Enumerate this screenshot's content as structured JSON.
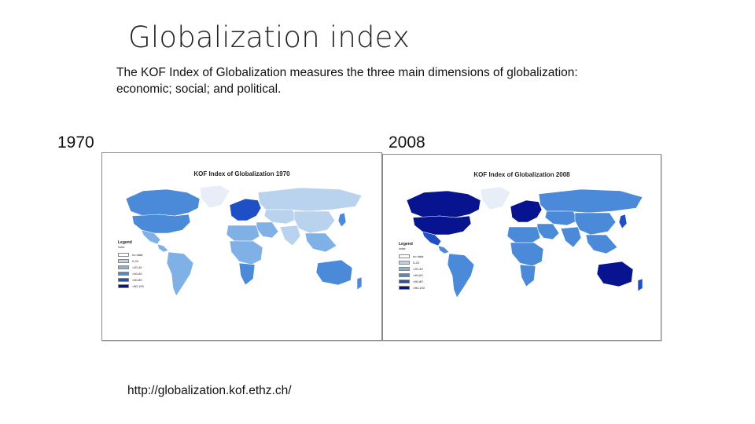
{
  "slide": {
    "title": "Globalization index",
    "subtitle": "The KOF Index of Globalization measures the three main dimensions of globalization: economic; social; and political.",
    "source_url": "http://globalization.kof.ethz.ch/"
  },
  "maps": [
    {
      "year_label": "1970",
      "map_title": "KOF Index of Globalization 1970",
      "legend_title": "Legend",
      "legend_subtitle": "Index",
      "legend": [
        {
          "label": "no data",
          "color": "#ffffff"
        },
        {
          "label": "0-20",
          "color": "#b9d3ef"
        },
        {
          "label": ">20-40",
          "color": "#7fb0e6"
        },
        {
          "label": ">40-60",
          "color": "#4a8ad9"
        },
        {
          "label": ">60-80",
          "color": "#1f4fc4"
        },
        {
          "label": ">80-100",
          "color": "#08148f"
        }
      ],
      "region_colors": {
        "canada": "#4a8ad9",
        "usa": "#4a8ad9",
        "greenland": "#e8eef7",
        "mexico": "#7fb0e6",
        "central_america": "#7fb0e6",
        "south_america": "#7fb0e6",
        "europe": "#1f4fc4",
        "russia": "#b9d3ef",
        "central_asia": "#b9d3ef",
        "middle_east": "#7fb0e6",
        "north_africa": "#7fb0e6",
        "sub_saharan_africa": "#7fb0e6",
        "southern_africa": "#4a8ad9",
        "south_asia": "#b9d3ef",
        "china": "#b9d3ef",
        "southeast_asia": "#7fb0e6",
        "japan": "#4a8ad9",
        "australia": "#4a8ad9",
        "new_zealand": "#4a8ad9"
      }
    },
    {
      "year_label": "2008",
      "map_title": "KOF Index of Globalization 2008",
      "legend_title": "Legend",
      "legend_subtitle": "Index",
      "legend": [
        {
          "label": "no data",
          "color": "#ffffff"
        },
        {
          "label": "0-20",
          "color": "#b9d3ef"
        },
        {
          "label": ">20-40",
          "color": "#7fb0e6"
        },
        {
          "label": ">40-60",
          "color": "#4a8ad9"
        },
        {
          "label": ">60-80",
          "color": "#1f4fc4"
        },
        {
          "label": ">80-100",
          "color": "#08148f"
        }
      ],
      "region_colors": {
        "canada": "#08148f",
        "usa": "#08148f",
        "greenland": "#e8eef7",
        "mexico": "#1f4fc4",
        "central_america": "#4a8ad9",
        "south_america": "#4a8ad9",
        "europe": "#08148f",
        "russia": "#4a8ad9",
        "central_asia": "#4a8ad9",
        "middle_east": "#4a8ad9",
        "north_africa": "#4a8ad9",
        "sub_saharan_africa": "#4a8ad9",
        "southern_africa": "#4a8ad9",
        "south_asia": "#4a8ad9",
        "china": "#4a8ad9",
        "southeast_asia": "#4a8ad9",
        "japan": "#1f4fc4",
        "australia": "#08148f",
        "new_zealand": "#1f4fc4"
      }
    }
  ]
}
